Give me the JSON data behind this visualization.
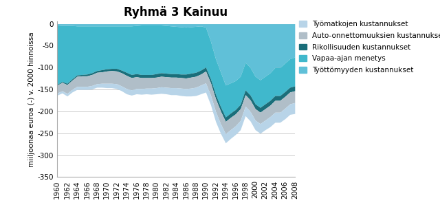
{
  "title": "Ryhmä 3 Kainuu",
  "ylabel": "miiljoonaa euroa (-) v. 2000 hinnoissa",
  "ylim": [
    -350,
    5
  ],
  "years": [
    1960,
    1961,
    1962,
    1963,
    1964,
    1965,
    1966,
    1967,
    1968,
    1969,
    1970,
    1971,
    1972,
    1973,
    1974,
    1975,
    1976,
    1977,
    1978,
    1979,
    1980,
    1981,
    1982,
    1983,
    1984,
    1985,
    1986,
    1987,
    1988,
    1989,
    1990,
    1991,
    1992,
    1993,
    1994,
    1995,
    1996,
    1997,
    1998,
    1999,
    2000,
    2001,
    2002,
    2003,
    2004,
    2005,
    2006,
    2007,
    2008
  ],
  "series": {
    "Työmatkojen kustannukset": [
      -5,
      -5,
      -6,
      -6,
      -7,
      -7,
      -7,
      -8,
      -8,
      -9,
      -10,
      -10,
      -11,
      -11,
      -12,
      -12,
      -12,
      -13,
      -13,
      -14,
      -14,
      -15,
      -15,
      -16,
      -16,
      -17,
      -17,
      -18,
      -19,
      -20,
      -21,
      -22,
      -23,
      -22,
      -21,
      -20,
      -20,
      -21,
      -22,
      -22,
      -22,
      -22,
      -22,
      -23,
      -23,
      -23,
      -24,
      -24,
      -25
    ],
    "Auto-onnettomuuksien kustannukset": [
      -18,
      -19,
      -20,
      -21,
      -23,
      -24,
      -24,
      -25,
      -26,
      -26,
      -28,
      -29,
      -29,
      -30,
      -30,
      -28,
      -27,
      -25,
      -24,
      -24,
      -24,
      -24,
      -24,
      -24,
      -24,
      -24,
      -24,
      -25,
      -25,
      -25,
      -27,
      -28,
      -29,
      -29,
      -28,
      -28,
      -27,
      -27,
      -26,
      -26,
      -26,
      -26,
      -26,
      -26,
      -27,
      -27,
      -27,
      -27,
      -27
    ],
    "Rikollisuuden kustannukset": [
      -2,
      -2,
      -3,
      -3,
      -3,
      -3,
      -4,
      -4,
      -4,
      -5,
      -5,
      -5,
      -6,
      -6,
      -7,
      -7,
      -7,
      -7,
      -7,
      -7,
      -8,
      -8,
      -8,
      -8,
      -8,
      -8,
      -9,
      -9,
      -9,
      -9,
      -9,
      -9,
      -10,
      -10,
      -10,
      -10,
      -10,
      -10,
      -11,
      -11,
      -11,
      -11,
      -11,
      -11,
      -11,
      -11,
      -11,
      -11,
      -11
    ],
    "Vapaa-ajan menetys": [
      -135,
      -128,
      -132,
      -122,
      -112,
      -111,
      -110,
      -107,
      -102,
      -100,
      -98,
      -97,
      -97,
      -101,
      -106,
      -111,
      -110,
      -113,
      -113,
      -113,
      -111,
      -109,
      -109,
      -109,
      -108,
      -108,
      -107,
      -106,
      -105,
      -101,
      -91,
      -86,
      -81,
      -79,
      -73,
      -69,
      -66,
      -64,
      -63,
      -63,
      -63,
      -63,
      -63,
      -63,
      -64,
      -64,
      -65,
      -65,
      -66
    ],
    "Työttömyyden kustannukset": [
      -3,
      -4,
      -4,
      -4,
      -5,
      -5,
      -5,
      -5,
      -5,
      -5,
      -5,
      -5,
      -5,
      -5,
      -5,
      -5,
      -4,
      -3,
      -3,
      -3,
      -3,
      -3,
      -4,
      -5,
      -6,
      -7,
      -8,
      -7,
      -6,
      -5,
      -8,
      -40,
      -80,
      -110,
      -140,
      -135,
      -130,
      -120,
      -88,
      -100,
      -120,
      -128,
      -120,
      -112,
      -100,
      -100,
      -90,
      -80,
      -76
    ]
  },
  "colors": {
    "Työmatkojen kustannukset": "#b8d4e8",
    "Auto-onnettomuuksien kustannukset": "#b0bec8",
    "Rikollisuuden kustannukset": "#1a6e7a",
    "Vapaa-ajan menetys": "#40b8cc",
    "Työttömyyden kustannukset": "#60c0d8"
  },
  "stack_order": [
    "Työttömyyden kustannukset",
    "Vapaa-ajan menetys",
    "Rikollisuuden kustannukset",
    "Auto-onnettomuuksien kustannukset",
    "Työmatkojen kustannukset"
  ],
  "legend_order": [
    "Työmatkojen kustannukset",
    "Auto-onnettomuuksien kustannukset",
    "Rikollisuuden kustannukset",
    "Vapaa-ajan menetys",
    "Työttömyyden kustannukset"
  ],
  "yticks": [
    0,
    -50,
    -100,
    -150,
    -200,
    -250,
    -300,
    -350
  ],
  "xtick_step": 2,
  "xmin": 1960,
  "xmax": 2008,
  "title_fontsize": 12,
  "ylabel_fontsize": 7.5,
  "tick_fontsize": 7.5,
  "legend_fontsize": 7.5,
  "grid_color": "#cccccc",
  "bg_color": "#ffffff",
  "spine_color": "#aaaaaa"
}
